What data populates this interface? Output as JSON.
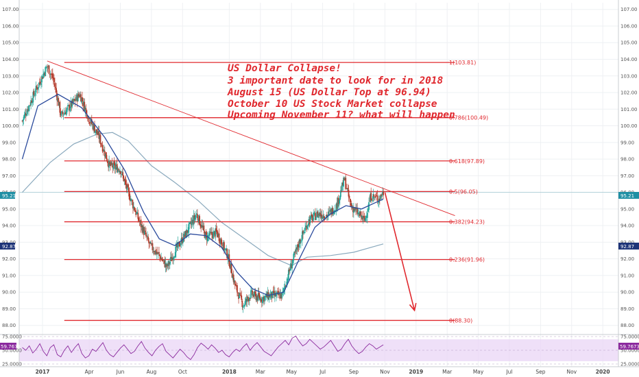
{
  "colors": {
    "grid": "#eef0f3",
    "candle_up": "#26a69a",
    "candle_down": "#b33a2a",
    "fib": "#e0282e",
    "ma_fast": "#2a4a9c",
    "ma_slow": "#8aa9bd",
    "rsi_line": "#8b2a9e",
    "rsi_band": "#e9d6f5",
    "price_badge": "#1f8fa4",
    "ma_badge": "#1e3478",
    "rsi_badge": "#8b2a9e"
  },
  "annotation": {
    "lines": [
      "US Dollar Collapse!",
      "3 important date to look for in 2018",
      "August 15  (US Dollar Top at 96.94)",
      "October 10 US Stock Market collapse",
      "Upcoming November 11? what will happen"
    ]
  },
  "badges": {
    "price_left": "95.21",
    "price_right": "95.21",
    "ma_left": "92.87",
    "ma_right": "92.87",
    "rsi_left": "59.7673",
    "rsi_right": "59.7673"
  },
  "chart_data": {
    "type": "candlestick",
    "instrument": "US Dollar Index",
    "y_axis": {
      "ylim": [
        87.7,
        107.4
      ],
      "ticks": [
        "107.00",
        "106.00",
        "105.00",
        "104.00",
        "103.00",
        "102.00",
        "101.00",
        "100.00",
        "99.00",
        "98.00",
        "97.00",
        "96.00",
        "95.00",
        "94.00",
        "93.00",
        "92.00",
        "91.00",
        "90.00",
        "89.00",
        "88.00"
      ]
    },
    "x_axis": {
      "labels": [
        "2017",
        "Apr",
        "Jun",
        "Aug",
        "Oct",
        "2018",
        "Mar",
        "May",
        "Jul",
        "Sep",
        "Nov",
        "2019",
        "Mar",
        "May",
        "Jul",
        "Sep",
        "Nov",
        "2020"
      ],
      "label_months": [
        0,
        3,
        5,
        7,
        9,
        12,
        14,
        16,
        18,
        20,
        22,
        24,
        26,
        28,
        30,
        32,
        34,
        36
      ]
    },
    "price_series_key_points": [
      {
        "month": -1.3,
        "value": 100.3
      },
      {
        "month": -0.5,
        "value": 102.0
      },
      {
        "month": 0.3,
        "value": 103.6
      },
      {
        "month": 0.7,
        "value": 102.8
      },
      {
        "month": 1.2,
        "value": 100.6
      },
      {
        "month": 1.8,
        "value": 101.2
      },
      {
        "month": 2.4,
        "value": 101.9
      },
      {
        "month": 3.0,
        "value": 100.4
      },
      {
        "month": 3.6,
        "value": 99.4
      },
      {
        "month": 4.3,
        "value": 97.6
      },
      {
        "month": 5.0,
        "value": 97.4
      },
      {
        "month": 5.5,
        "value": 96.0
      },
      {
        "month": 6.2,
        "value": 94.3
      },
      {
        "month": 6.9,
        "value": 92.8
      },
      {
        "month": 7.5,
        "value": 92.2
      },
      {
        "month": 8.0,
        "value": 91.5
      },
      {
        "month": 8.6,
        "value": 92.6
      },
      {
        "month": 9.2,
        "value": 93.5
      },
      {
        "month": 9.9,
        "value": 94.7
      },
      {
        "month": 10.5,
        "value": 93.3
      },
      {
        "month": 11.2,
        "value": 93.6
      },
      {
        "month": 11.9,
        "value": 92.2
      },
      {
        "month": 12.4,
        "value": 90.3
      },
      {
        "month": 12.9,
        "value": 89.2
      },
      {
        "month": 13.4,
        "value": 89.9
      },
      {
        "month": 14.0,
        "value": 89.6
      },
      {
        "month": 14.6,
        "value": 89.8
      },
      {
        "month": 15.4,
        "value": 89.8
      },
      {
        "month": 15.9,
        "value": 91.4
      },
      {
        "month": 16.5,
        "value": 93.0
      },
      {
        "month": 17.1,
        "value": 94.3
      },
      {
        "month": 17.7,
        "value": 94.7
      },
      {
        "month": 18.3,
        "value": 94.6
      },
      {
        "month": 18.9,
        "value": 95.2
      },
      {
        "month": 19.4,
        "value": 96.8
      },
      {
        "month": 19.8,
        "value": 95.2
      },
      {
        "month": 20.3,
        "value": 94.7
      },
      {
        "month": 20.7,
        "value": 94.3
      },
      {
        "month": 21.1,
        "value": 95.8
      },
      {
        "month": 21.6,
        "value": 95.6
      },
      {
        "month": 21.9,
        "value": 96.0
      }
    ],
    "moving_average_fast": [
      {
        "month": -1.3,
        "value": 98.0
      },
      {
        "month": -0.3,
        "value": 101.2
      },
      {
        "month": 1.0,
        "value": 101.9
      },
      {
        "month": 2.5,
        "value": 101.1
      },
      {
        "month": 4.0,
        "value": 99.3
      },
      {
        "month": 5.3,
        "value": 97.3
      },
      {
        "month": 6.5,
        "value": 94.8
      },
      {
        "month": 7.5,
        "value": 93.2
      },
      {
        "month": 8.5,
        "value": 92.8
      },
      {
        "month": 9.5,
        "value": 93.5
      },
      {
        "month": 10.5,
        "value": 93.4
      },
      {
        "month": 11.5,
        "value": 92.7
      },
      {
        "month": 12.5,
        "value": 91.2
      },
      {
        "month": 13.5,
        "value": 90.2
      },
      {
        "month": 14.5,
        "value": 89.8
      },
      {
        "month": 15.5,
        "value": 90.0
      },
      {
        "month": 16.5,
        "value": 92.0
      },
      {
        "month": 17.5,
        "value": 93.9
      },
      {
        "month": 18.5,
        "value": 94.7
      },
      {
        "month": 19.5,
        "value": 95.2
      },
      {
        "month": 20.5,
        "value": 95.0
      },
      {
        "month": 21.9,
        "value": 95.6
      }
    ],
    "moving_average_slow": [
      {
        "month": -1.3,
        "value": 96.0
      },
      {
        "month": 0.5,
        "value": 97.8
      },
      {
        "month": 2.0,
        "value": 98.9
      },
      {
        "month": 3.5,
        "value": 99.5
      },
      {
        "month": 4.5,
        "value": 99.6
      },
      {
        "month": 5.5,
        "value": 99.1
      },
      {
        "month": 7.0,
        "value": 97.6
      },
      {
        "month": 8.5,
        "value": 96.6
      },
      {
        "month": 10.0,
        "value": 95.5
      },
      {
        "month": 11.5,
        "value": 94.2
      },
      {
        "month": 13.0,
        "value": 93.2
      },
      {
        "month": 14.5,
        "value": 92.2
      },
      {
        "month": 16.0,
        "value": 91.6
      },
      {
        "month": 17.0,
        "value": 92.1
      },
      {
        "month": 18.5,
        "value": 92.2
      },
      {
        "month": 20.0,
        "value": 92.4
      },
      {
        "month": 21.9,
        "value": 92.9
      }
    ],
    "fibonacci_levels": [
      {
        "label": "1(103.81)",
        "value": 103.81
      },
      {
        "label": "0.786(100.49)",
        "value": 100.49
      },
      {
        "label": "0.618(97.89)",
        "value": 97.89
      },
      {
        "label": "0.5(96.05)",
        "value": 96.05
      },
      {
        "label": "0.382(94.23)",
        "value": 94.23
      },
      {
        "label": "0.236(91.96)",
        "value": 91.96
      },
      {
        "label": "0(88.30)",
        "value": 88.3
      }
    ],
    "trendline": {
      "start": {
        "month": 0.3,
        "value": 103.9
      },
      "end": {
        "month": 26.5,
        "value": 94.6
      }
    },
    "projection_arrow": {
      "start": {
        "month": 22.0,
        "value": 96.0
      },
      "end": {
        "month": 23.9,
        "value": 88.9
      }
    },
    "rsi": {
      "ylim": [
        25,
        75
      ],
      "ticks": [
        "75.0000",
        "50.0000",
        "25.0000"
      ],
      "band": [
        30,
        70
      ],
      "values": [
        55,
        50,
        58,
        45,
        52,
        62,
        48,
        40,
        55,
        60,
        42,
        38,
        50,
        58,
        46,
        55,
        62,
        44,
        36,
        40,
        52,
        48,
        56,
        64,
        50,
        42,
        38,
        46,
        54,
        60,
        52,
        44,
        48,
        58,
        66,
        54,
        46,
        40,
        50,
        57,
        62,
        48,
        42,
        36,
        44,
        52,
        46,
        38,
        33,
        42,
        55,
        63,
        58,
        52,
        60,
        54,
        46,
        50,
        42,
        38,
        46,
        52,
        48,
        56,
        62,
        50,
        58,
        64,
        56,
        48,
        44,
        40,
        48,
        56,
        62,
        68,
        60,
        72,
        76,
        66,
        58,
        62,
        70,
        64,
        58,
        52,
        56,
        62,
        68,
        58,
        48,
        52,
        62,
        70,
        58,
        50,
        44,
        48,
        56,
        62,
        58,
        52,
        56,
        60
      ]
    }
  }
}
